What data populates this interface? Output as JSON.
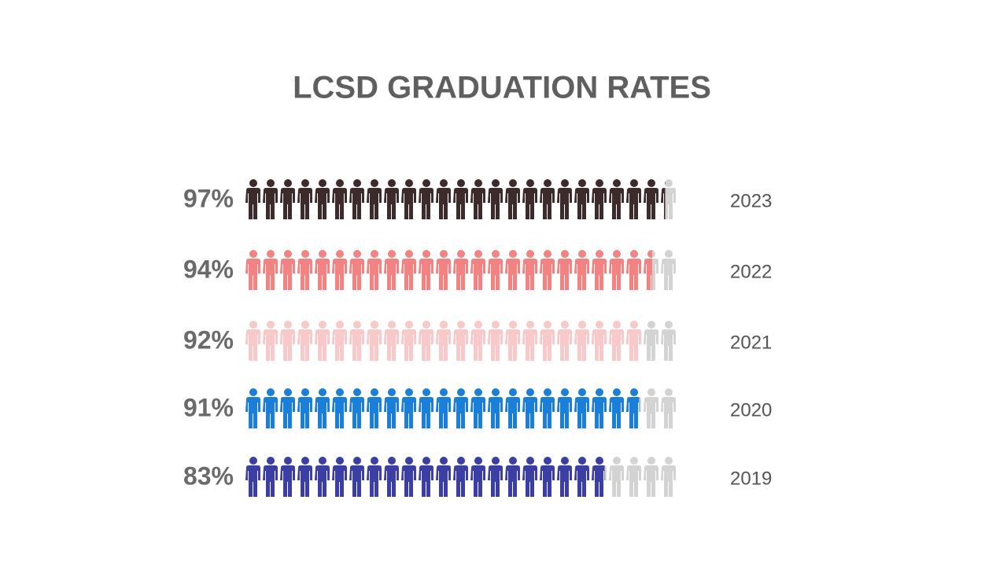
{
  "chart_data": {
    "type": "pictogram",
    "title": "LCSD GRADUATION RATES",
    "categories": [
      "2023",
      "2022",
      "2021",
      "2020",
      "2019"
    ],
    "values": [
      97,
      94,
      92,
      91,
      83
    ],
    "value_labels": [
      "97%",
      "94%",
      "92%",
      "91%",
      "83%"
    ],
    "colors": [
      "#3d2a2b",
      "#f38383",
      "#f8c9c9",
      "#1a7fd8",
      "#3b3fa3"
    ],
    "empty_color": "#d3d3d3"
  }
}
